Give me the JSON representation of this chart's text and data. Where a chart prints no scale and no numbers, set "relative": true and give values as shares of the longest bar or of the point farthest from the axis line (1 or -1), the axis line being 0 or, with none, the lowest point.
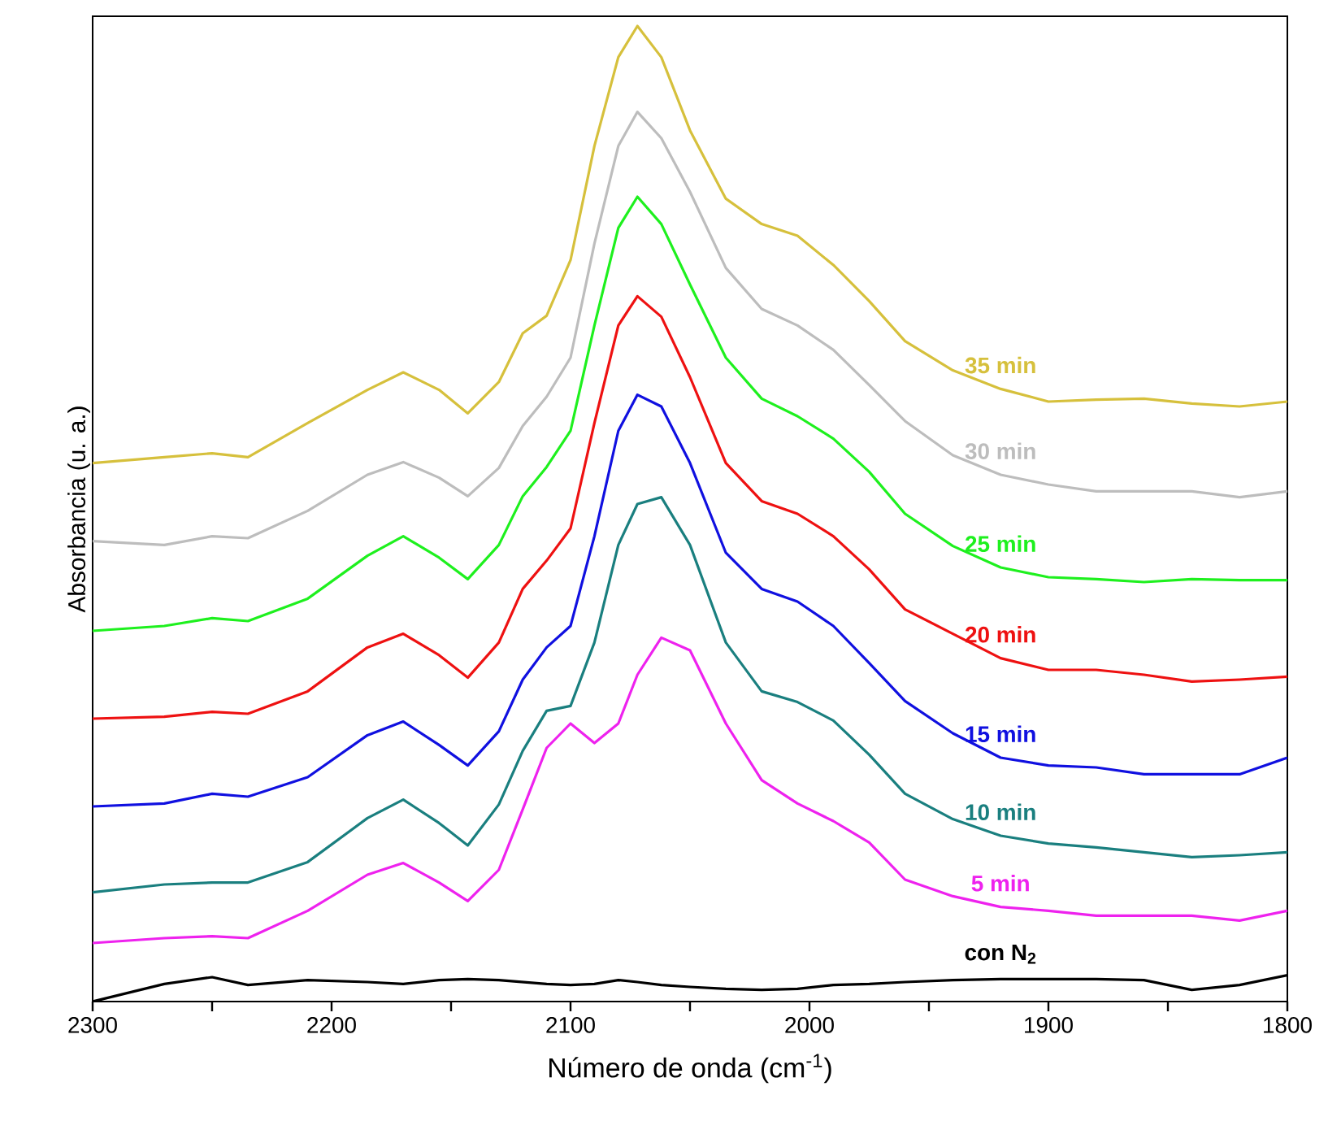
{
  "chart_data": {
    "type": "line",
    "relative": true,
    "xlabel": "Número de onda (cm$^{-1}$)",
    "ylabel": "Absorbancia (u. a.)",
    "xlim": [
      2300,
      1800
    ],
    "xticks": [
      2300,
      {
        "value": 2250,
        "label": null
      },
      2200,
      {
        "value": 2150,
        "label": null
      },
      2100,
      {
        "value": 2050,
        "label": null
      },
      2000,
      {
        "value": 1950,
        "label": null
      },
      1900,
      {
        "value": 1850,
        "label": null
      },
      1800
    ],
    "x": [
      2300,
      2270,
      2250,
      2235,
      2210,
      2185,
      2170,
      2155,
      2143,
      2130,
      2120,
      2110,
      2100,
      2090,
      2080,
      2072,
      2062,
      2050,
      2035,
      2020,
      2005,
      1990,
      1975,
      1960,
      1940,
      1920,
      1900,
      1880,
      1860,
      1840,
      1820,
      1800
    ],
    "series": [
      {
        "name": "35 min",
        "color": "#d6c03c",
        "values": [
          0.552,
          0.558,
          0.562,
          0.558,
          0.593,
          0.627,
          0.645,
          0.627,
          0.603,
          0.635,
          0.685,
          0.703,
          0.76,
          0.877,
          0.968,
          1.0,
          0.968,
          0.893,
          0.823,
          0.797,
          0.785,
          0.755,
          0.718,
          0.677,
          0.647,
          0.628,
          0.615,
          0.617,
          0.618,
          0.613,
          0.61,
          0.615
        ]
      },
      {
        "name": "30 min",
        "color": "#bdbdbd",
        "values": [
          0.472,
          0.468,
          0.477,
          0.475,
          0.503,
          0.54,
          0.553,
          0.537,
          0.518,
          0.547,
          0.59,
          0.62,
          0.66,
          0.777,
          0.877,
          0.912,
          0.885,
          0.83,
          0.752,
          0.71,
          0.693,
          0.668,
          0.632,
          0.595,
          0.56,
          0.54,
          0.53,
          0.523,
          0.523,
          0.523,
          0.517,
          0.523
        ]
      },
      {
        "name": "25 min",
        "color": "#1ef01e",
        "values": [
          0.38,
          0.385,
          0.393,
          0.39,
          0.413,
          0.457,
          0.477,
          0.455,
          0.433,
          0.468,
          0.518,
          0.548,
          0.585,
          0.693,
          0.793,
          0.825,
          0.797,
          0.735,
          0.66,
          0.618,
          0.6,
          0.577,
          0.543,
          0.5,
          0.467,
          0.445,
          0.435,
          0.433,
          0.43,
          0.433,
          0.432,
          0.432
        ]
      },
      {
        "name": "20 min",
        "color": "#ee1111",
        "values": [
          0.29,
          0.292,
          0.297,
          0.295,
          0.318,
          0.363,
          0.377,
          0.355,
          0.332,
          0.368,
          0.423,
          0.452,
          0.485,
          0.593,
          0.693,
          0.723,
          0.702,
          0.64,
          0.552,
          0.513,
          0.5,
          0.477,
          0.443,
          0.402,
          0.377,
          0.352,
          0.34,
          0.34,
          0.335,
          0.328,
          0.33,
          0.333
        ]
      },
      {
        "name": "15 min",
        "color": "#1010e0",
        "values": [
          0.2,
          0.203,
          0.213,
          0.21,
          0.23,
          0.273,
          0.287,
          0.263,
          0.242,
          0.277,
          0.33,
          0.363,
          0.385,
          0.477,
          0.585,
          0.622,
          0.61,
          0.552,
          0.46,
          0.423,
          0.41,
          0.385,
          0.347,
          0.308,
          0.275,
          0.25,
          0.242,
          0.24,
          0.233,
          0.233,
          0.233,
          0.25
        ]
      },
      {
        "name": "10 min",
        "color": "#1a7f7f",
        "values": [
          0.112,
          0.12,
          0.122,
          0.122,
          0.143,
          0.188,
          0.207,
          0.183,
          0.16,
          0.202,
          0.257,
          0.298,
          0.303,
          0.368,
          0.468,
          0.51,
          0.517,
          0.468,
          0.368,
          0.318,
          0.307,
          0.288,
          0.253,
          0.213,
          0.187,
          0.17,
          0.162,
          0.158,
          0.153,
          0.148,
          0.15,
          0.153
        ]
      },
      {
        "name": "5 min",
        "color": "#ee22ee",
        "values": [
          0.06,
          0.065,
          0.067,
          0.065,
          0.093,
          0.13,
          0.142,
          0.122,
          0.103,
          0.135,
          0.197,
          0.26,
          0.285,
          0.265,
          0.285,
          0.335,
          0.373,
          0.36,
          0.285,
          0.227,
          0.203,
          0.185,
          0.163,
          0.125,
          0.108,
          0.097,
          0.093,
          0.088,
          0.088,
          0.088,
          0.083,
          0.093
        ]
      },
      {
        "name": "con N$_{2}$",
        "color": "#000000",
        "values": [
          0.0,
          0.018,
          0.025,
          0.017,
          0.022,
          0.02,
          0.018,
          0.022,
          0.023,
          0.022,
          0.02,
          0.018,
          0.017,
          0.018,
          0.022,
          0.02,
          0.017,
          0.015,
          0.013,
          0.012,
          0.013,
          0.017,
          0.018,
          0.02,
          0.022,
          0.023,
          0.023,
          0.023,
          0.022,
          0.012,
          0.017,
          0.027
        ]
      }
    ]
  }
}
